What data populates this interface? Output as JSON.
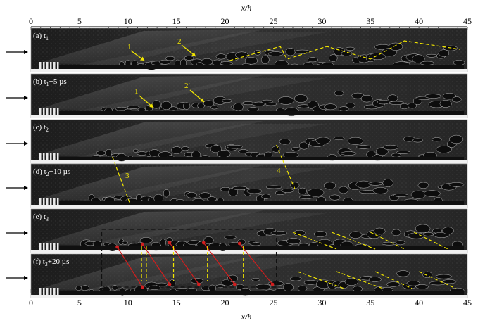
{
  "figure": {
    "axis_title_top": "x/h",
    "axis_title_bottom": "x/h",
    "x_ticks": [
      "0",
      "5",
      "10",
      "15",
      "20",
      "25",
      "30",
      "35",
      "40",
      "45"
    ],
    "panels": [
      {
        "id": "a",
        "label": "(a) t",
        "sub": "1",
        "suffix": ""
      },
      {
        "id": "b",
        "label": "(b) t",
        "sub": "1",
        "suffix": "+5 µs"
      },
      {
        "id": "c",
        "label": "(c) t",
        "sub": "2",
        "suffix": ""
      },
      {
        "id": "d",
        "label": "(d) t",
        "sub": "2",
        "suffix": "+10 µs"
      },
      {
        "id": "e",
        "label": "(e) t",
        "sub": "3",
        "suffix": ""
      },
      {
        "id": "f",
        "label": "(f) t",
        "sub": "3",
        "suffix": "+20 µs"
      }
    ],
    "annotations": {
      "a1": "1",
      "a2": "2",
      "b1": "1′",
      "b2": "2′",
      "d3": "3",
      "d4": "4"
    },
    "colors": {
      "panel_bg": "#2a2a2a",
      "yellow": "#f2e600",
      "red": "#d21e1e"
    }
  }
}
